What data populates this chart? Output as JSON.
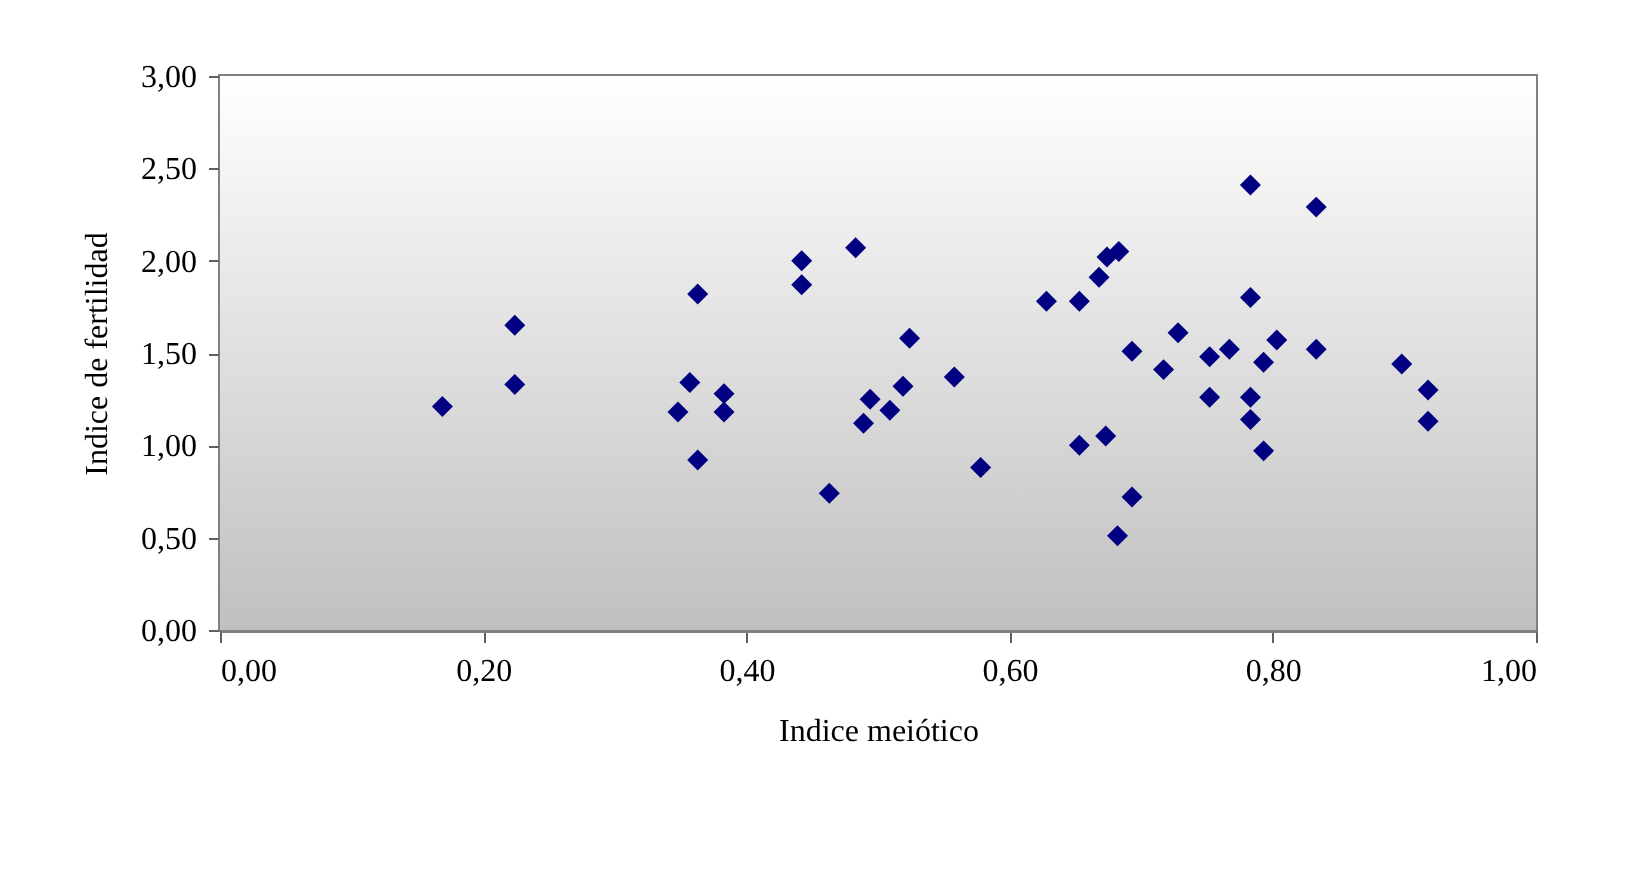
{
  "chart_data": {
    "type": "scatter",
    "xlabel": "Indice meiótico",
    "ylabel": "Indice de fertilidad",
    "x": [
      0.169,
      0.224,
      0.224,
      0.348,
      0.357,
      0.363,
      0.363,
      0.383,
      0.383,
      0.442,
      0.442,
      0.463,
      0.483,
      0.524,
      0.494,
      0.489,
      0.509,
      0.519,
      0.558,
      0.578,
      0.628,
      0.653,
      0.668,
      0.674,
      0.683,
      0.653,
      0.673,
      0.693,
      0.682,
      0.693,
      0.728,
      0.717,
      0.752,
      0.767,
      0.752,
      0.783,
      0.783,
      0.783,
      0.783,
      0.793,
      0.793,
      0.803,
      0.833,
      0.833,
      0.898,
      0.918,
      0.918
    ],
    "series": [
      {
        "color": "#000080",
        "values": [
          1.21,
          1.65,
          1.33,
          1.18,
          1.34,
          1.82,
          0.92,
          1.28,
          1.18,
          2.0,
          1.87,
          0.74,
          2.07,
          1.58,
          1.25,
          1.12,
          1.19,
          1.32,
          1.37,
          0.88,
          1.78,
          1.78,
          1.91,
          2.02,
          2.05,
          1.0,
          1.05,
          0.72,
          0.51,
          1.51,
          1.61,
          1.41,
          1.48,
          1.52,
          1.26,
          2.41,
          1.8,
          1.26,
          1.14,
          0.97,
          1.45,
          1.57,
          2.29,
          1.52,
          1.44,
          1.3,
          1.13
        ]
      }
    ],
    "xlim": [
      0,
      1
    ],
    "xticks": [
      {
        "value": 0,
        "label": "0,00"
      },
      {
        "value": 0.2,
        "label": "0,20"
      },
      {
        "value": 0.4,
        "label": "0,40"
      },
      {
        "value": 0.6,
        "label": "0,60"
      },
      {
        "value": 0.8,
        "label": "0,80"
      },
      {
        "value": 1,
        "label": "1,00"
      }
    ],
    "ylim": [
      0,
      3
    ],
    "yticks": [
      {
        "value": 0,
        "label": "0,00"
      },
      {
        "value": 0.5,
        "label": "0,50"
      },
      {
        "value": 1,
        "label": "1,00"
      },
      {
        "value": 1.5,
        "label": "1,50"
      },
      {
        "value": 2,
        "label": "2,00"
      },
      {
        "value": 2.5,
        "label": "2,50"
      },
      {
        "value": 3,
        "label": "3,00"
      }
    ],
    "marker": "diamond",
    "grid": false,
    "legend": false
  }
}
